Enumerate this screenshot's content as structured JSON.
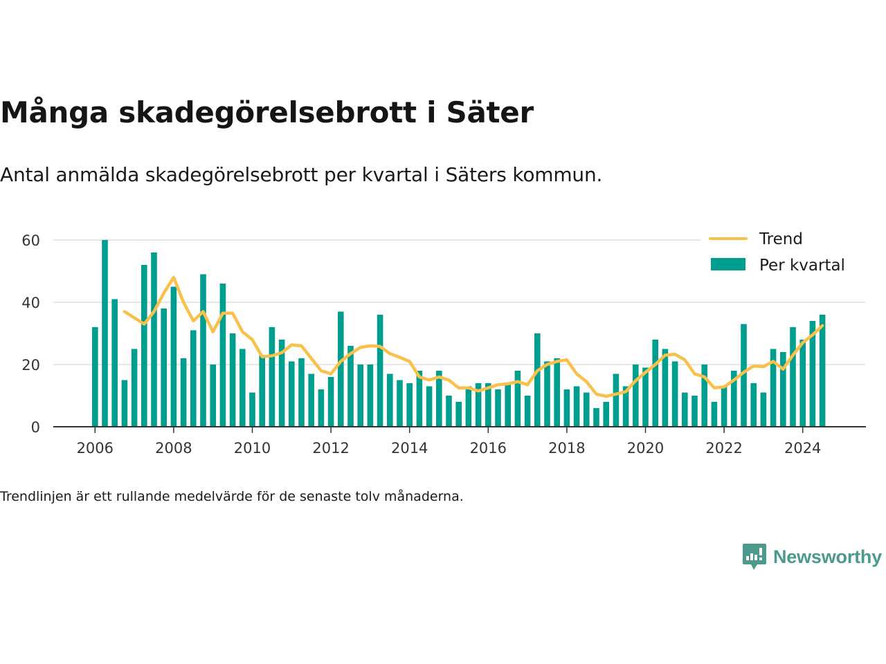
{
  "title": "Många skadegörelsebrott i Säter",
  "subtitle": "Antal anmälda skadegörelsebrott per kvartal i Säters kommun.",
  "note": "Trendlinjen är ett rullande medelvärde för de senaste tolv månaderna.",
  "brand": "Newsworthy",
  "colors": {
    "bar": "#009e8e",
    "trend": "#f9c04c",
    "grid": "#dddddd",
    "axis": "#333333",
    "brand": "#4c9a8e"
  },
  "chart_data": {
    "type": "bar",
    "x_start": "2006-Q1",
    "ylim": [
      0,
      60
    ],
    "yticks": [
      0,
      20,
      40,
      60
    ],
    "xticks": [
      "2006",
      "2008",
      "2010",
      "2012",
      "2014",
      "2016",
      "2018",
      "2020",
      "2022",
      "2024"
    ],
    "grid": true,
    "legend_position": "top-right",
    "series": [
      {
        "name": "Per kvartal",
        "kind": "bar",
        "values": [
          32,
          60,
          41,
          15,
          25,
          52,
          56,
          38,
          45,
          22,
          31,
          49,
          20,
          46,
          30,
          25,
          11,
          23,
          32,
          28,
          21,
          22,
          17,
          12,
          16,
          37,
          26,
          20,
          20,
          36,
          17,
          15,
          14,
          18,
          13,
          18,
          10,
          8,
          13,
          14,
          14,
          12,
          14,
          18,
          10,
          30,
          21,
          22,
          12,
          13,
          11,
          6,
          8,
          17,
          13,
          20,
          19,
          28,
          25,
          21,
          11,
          10,
          20,
          8,
          13,
          18,
          33,
          14,
          11,
          25,
          24,
          32,
          28,
          34,
          36
        ]
      },
      {
        "name": "Trend",
        "kind": "line",
        "values": [
          null,
          null,
          null,
          37,
          35,
          33,
          37,
          43,
          48,
          40,
          34,
          37,
          30.5,
          36.5,
          36.5,
          30.5,
          28,
          22.5,
          22.8,
          23.8,
          26.3,
          26,
          22,
          18,
          17,
          21,
          23.5,
          25.5,
          26,
          25.8,
          23.5,
          22.3,
          21,
          16,
          15,
          16,
          15,
          12.5,
          12.5,
          11.5,
          12.5,
          13.5,
          13.8,
          14.5,
          13.5,
          18,
          20,
          21,
          21.5,
          17,
          14.5,
          10.5,
          9.8,
          10.5,
          11.3,
          14.8,
          17.5,
          20,
          23,
          23.3,
          21.5,
          17,
          16,
          12.5,
          12.8,
          15,
          17.5,
          19.5,
          19.3,
          21,
          18.5,
          23,
          27,
          29.5,
          32.5
        ]
      }
    ]
  }
}
